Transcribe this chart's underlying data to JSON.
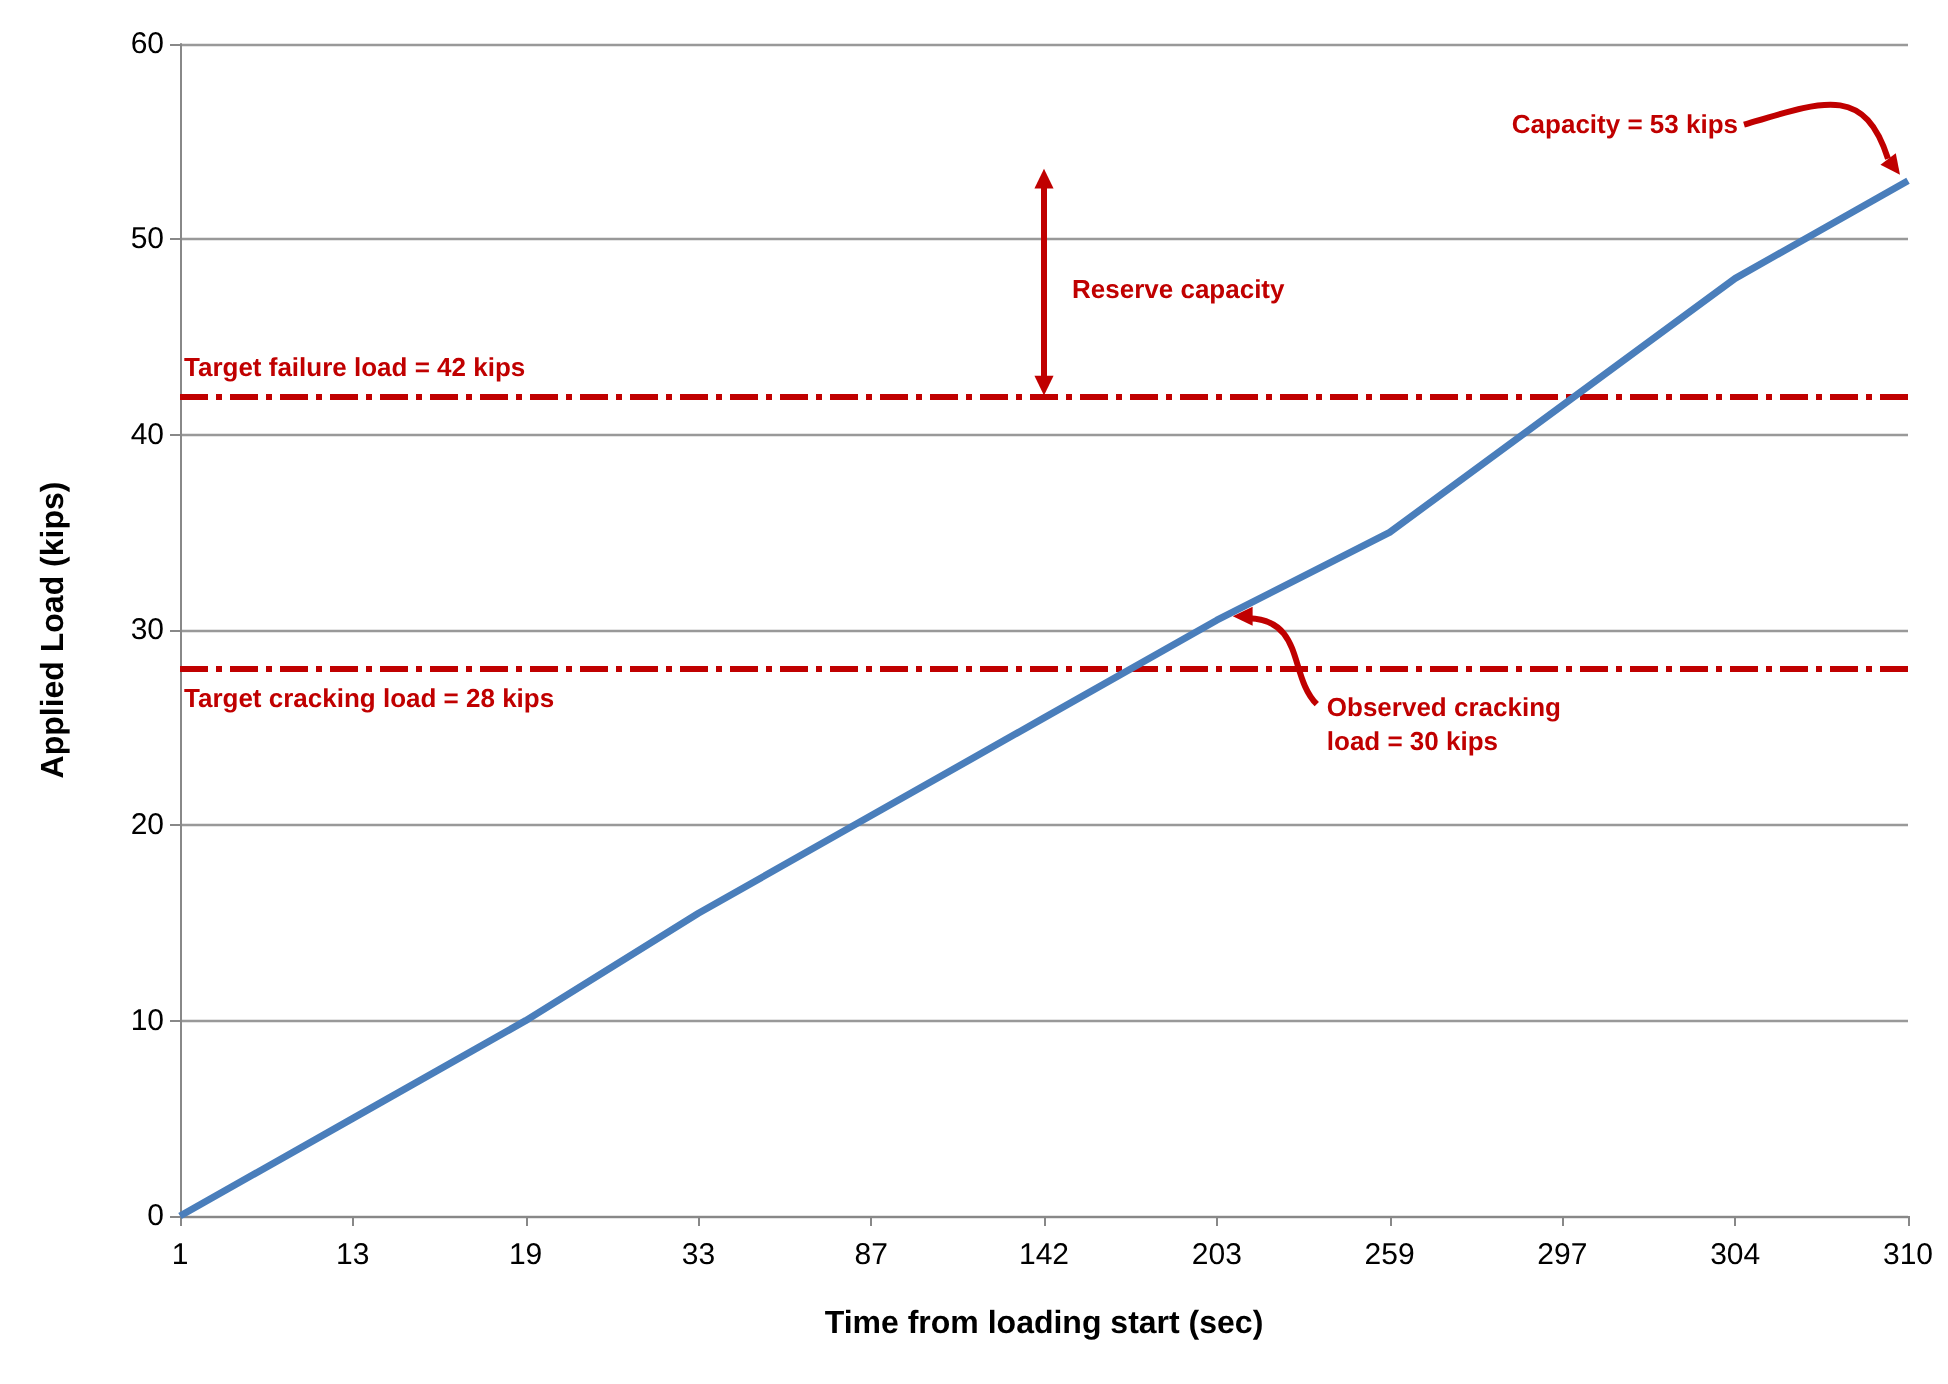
{
  "chart_data": {
    "type": "line",
    "xlabel": "Time from loading start (sec)",
    "ylabel": "Applied Load (kips)",
    "categories": [
      "1",
      "13",
      "19",
      "33",
      "87",
      "142",
      "203",
      "259",
      "297",
      "304",
      "310"
    ],
    "series": [
      {
        "color": "#4a7ebb",
        "values": [
          0,
          5,
          10,
          15.5,
          20.5,
          25.5,
          30.5,
          35,
          41.5,
          48,
          53
        ]
      }
    ],
    "ylim": [
      0,
      60
    ],
    "yticks": [
      0,
      10,
      20,
      30,
      40,
      50,
      60
    ],
    "grid": "y",
    "marker": "none",
    "ref_lines": [
      {
        "axis": "y",
        "value": 42,
        "label": "Target failure load = 42 kips",
        "color": "#c00000",
        "line_style": "dashed"
      },
      {
        "axis": "y",
        "value": 28,
        "label": "Target cracking load = 28 kips",
        "color": "#c00000",
        "line_style": "dashed"
      }
    ],
    "annotations": [
      "Capacity = 53 kips",
      "Reserve capacity",
      "Observed cracking load = 30 kips"
    ]
  }
}
